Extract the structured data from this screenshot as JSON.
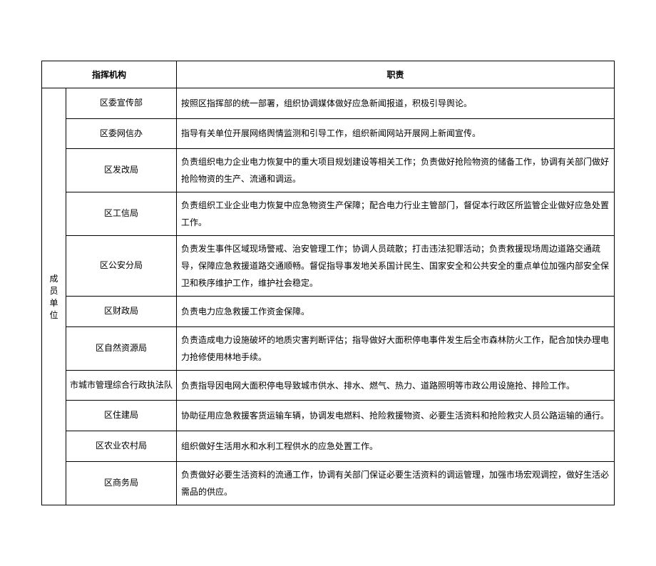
{
  "headers": {
    "org": "指挥机构",
    "duty": "职责"
  },
  "group_label": "成员单位",
  "rows": [
    {
      "org": "区委宣传部",
      "duty": "按照区指挥部的统一部署，组织协调媒体做好应急新闻报道，积极引导舆论。"
    },
    {
      "org": "区委网信办",
      "duty": "指导有关单位开展网络舆情监测和引导工作，组织新闻网站开展网上新闻宣传。"
    },
    {
      "org": "区发改局",
      "duty": "负责组织电力企业电力恢复中的重大项目规划建设等相关工作；负责做好抢险物资的储备工作，协调有关部门做好抢险物资的生产、流通和调运。"
    },
    {
      "org": "区工信局",
      "duty": "负责组织工业企业电力恢复中应急物资生产保障；配合电力行业主管部门，督促本行政区所监管企业做好应急处置工作。"
    },
    {
      "org": "区公安分局",
      "duty": "负责发生事件区域现场警戒、治安管理工作；协调人员疏散；打击违法犯罪活动；负责救援现场周边道路交通疏导，保障应急救援道路交通顺畅。督促指导事发地关系国计民生、国家安全和公共安全的重点单位加强内部安全保卫和秩序维护工作，维护社会稳定。"
    },
    {
      "org": "区财政局",
      "duty": "负责电力应急救援工作资金保障。"
    },
    {
      "org": "区自然资源局",
      "duty": "负责造成电力设施破坏的地质灾害判断评估；指导做好大面积停电事件发生后全市森林防火工作，配合加快办理电力抢修使用林地手续。"
    },
    {
      "org": "市城市管理综合行政执法队",
      "duty": "负责指导因电网大面积停电导致城市供水、排水、燃气、热力、道路照明等市政公用设施抢、排险工作。"
    },
    {
      "org": "区住建局",
      "duty": "协助征用应急救援客货运输车辆，协调发电燃料、抢险救援物资、必要生活资料和抢险救灾人员公路运输的通行。"
    },
    {
      "org": "区农业农村局",
      "duty": "组织做好生活用水和水利工程供水的应急处置工作。"
    },
    {
      "org": "区商务局",
      "duty": "负责做好必要生活资料的流通工作，协调有关部门保证必要生活资料的调运管理，加强市场宏观调控，做好生活必需品的供应。"
    }
  ]
}
